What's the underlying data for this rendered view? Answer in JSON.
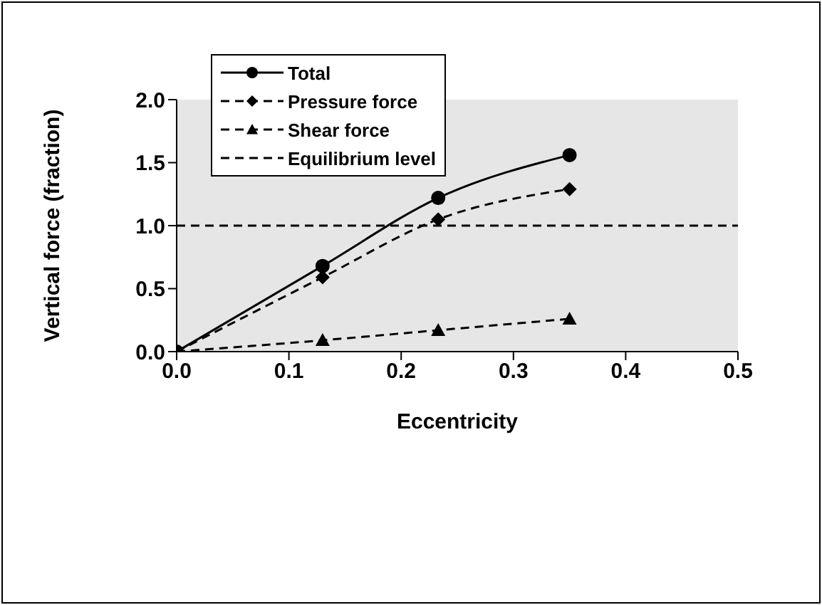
{
  "chart_data": {
    "type": "line",
    "xlabel": "Eccentricity",
    "ylabel": "Vertical force (fraction)",
    "x": [
      0,
      0.13,
      0.233,
      0.35
    ],
    "series": [
      {
        "name": "Total",
        "color": "#000000",
        "values": [
          0,
          0.68,
          1.22,
          1.56
        ],
        "marker": "circle",
        "line_style": "solid"
      },
      {
        "name": "Pressure force",
        "color": "#000000",
        "values": [
          0,
          0.59,
          1.05,
          1.29
        ],
        "marker": "diamond",
        "line_style": "dashed"
      },
      {
        "name": "Shear force",
        "color": "#000000",
        "values": [
          0,
          0.09,
          0.17,
          0.26
        ],
        "marker": "triangle",
        "line_style": "dashed"
      }
    ],
    "ref_lines": [
      {
        "axis": "y",
        "value": 1,
        "label": "Equilibrium level",
        "color": "#000000",
        "line_style": "dashed"
      }
    ],
    "xlim": [
      0,
      0.5
    ],
    "xticks": [
      {
        "value": 0,
        "label": "0.0"
      },
      0.1,
      0.2,
      0.3,
      0.4,
      0.5
    ],
    "ylim": [
      0,
      2
    ],
    "yticks": [
      {
        "value": 0,
        "label": "0.0"
      },
      0.5,
      {
        "value": 1,
        "label": "1.0"
      },
      1.5,
      {
        "value": 2,
        "label": "2.0"
      }
    ],
    "grid": false,
    "legend": "top left"
  }
}
